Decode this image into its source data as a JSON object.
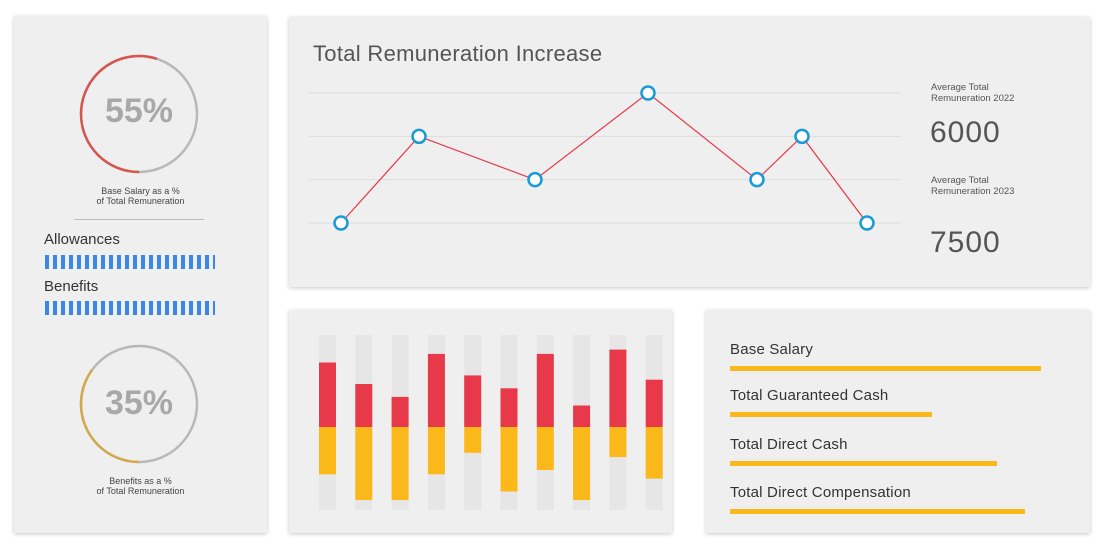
{
  "colors": {
    "accent_blue": "#3a87e6",
    "red": "#e8394a",
    "yellow": "#fbb81b",
    "line": "#e8394a",
    "panel": "#efefef"
  },
  "left_panel": {
    "ring1": {
      "value": "55%",
      "caption_line1": "Base Salary as a %",
      "caption_line2": "of Total Remuneration",
      "fraction": 0.55,
      "color": "#d9534f"
    },
    "allowances": {
      "label": "Allowances",
      "level": 1.0
    },
    "benefits": {
      "label": "Benefits",
      "level": 1.0
    },
    "ring2": {
      "value": "35%",
      "caption_line1": "Benefits as a %",
      "caption_line2": "of Total Remuneration",
      "fraction": 0.35,
      "color": "#d4a94a"
    }
  },
  "line_panel": {
    "title": "Total Remuneration Increase",
    "stat1": {
      "label_line1": "Average Total",
      "label_line2": "Remuneration 2022",
      "value": "6000"
    },
    "stat2": {
      "label_line1": "Average Total",
      "label_line2": "Remuneration 2023",
      "value": "7500"
    }
  },
  "chart_data": [
    {
      "type": "line",
      "title": "Total Remuneration Increase",
      "series": [
        {
          "values": [
            0,
            2,
            1,
            3,
            1,
            2,
            0
          ]
        }
      ],
      "ylim": [
        0,
        3
      ],
      "grid": true
    },
    {
      "type": "bar",
      "series": [
        {
          "color": "#e8394a",
          "values": [
            1.5,
            1.0,
            0.7,
            1.7,
            1.2,
            0.9,
            1.7,
            0.5,
            1.8,
            1.1
          ]
        },
        {
          "color": "#fbb81b",
          "values": [
            -1.1,
            -1.7,
            -1.7,
            -1.1,
            -0.6,
            -1.5,
            -1.0,
            -1.7,
            -0.7,
            -1.2
          ]
        }
      ]
    }
  ],
  "list_panel": {
    "items": [
      {
        "label": "Base Salary",
        "level": 1.0
      },
      {
        "label": "Total Guaranteed Cash",
        "level": 0.65
      },
      {
        "label": "Total Direct Cash",
        "level": 0.86
      },
      {
        "label": "Total Direct Compensation",
        "level": 0.95
      }
    ]
  }
}
